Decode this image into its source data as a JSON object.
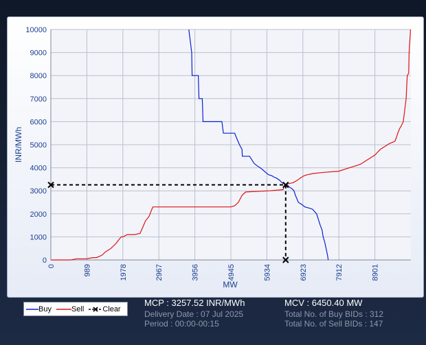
{
  "chart_data": {
    "type": "line",
    "ylabel": "INR/MWh",
    "xlabel": "MW",
    "xlim": [
      0,
      9890
    ],
    "ylim": [
      0,
      10000
    ],
    "x_ticks": [
      0,
      989,
      1978,
      2967,
      3956,
      4945,
      5934,
      6923,
      7912,
      8901
    ],
    "y_ticks": [
      0,
      1000,
      2000,
      3000,
      4000,
      5000,
      6000,
      7000,
      8000,
      9000,
      10000
    ],
    "grid": true,
    "legend_position": "bottom-left",
    "series": [
      {
        "name": "Buy",
        "color": "#0b1fd1",
        "x": [
          3790,
          3870,
          3880,
          4050,
          4070,
          4160,
          4180,
          4700,
          4740,
          5050,
          5100,
          5180,
          5250,
          5260,
          5460,
          5500,
          5580,
          5650,
          5750,
          5830,
          5900,
          5980,
          6080,
          6120,
          6200,
          6290,
          6350,
          6420,
          6500,
          6560,
          6620,
          6680,
          6720,
          6800,
          6900,
          6980,
          7100,
          7190,
          7300,
          7400,
          7450,
          7480,
          7520,
          7560,
          7600,
          7620
        ],
        "y": [
          10000,
          9000,
          8000,
          8000,
          7000,
          7000,
          6000,
          6000,
          5500,
          5500,
          5300,
          5000,
          4800,
          4500,
          4500,
          4400,
          4200,
          4100,
          4000,
          3900,
          3800,
          3700,
          3650,
          3600,
          3550,
          3450,
          3350,
          3300,
          3250,
          3150,
          3100,
          3000,
          2800,
          2500,
          2400,
          2300,
          2250,
          2200,
          2000,
          1500,
          1300,
          1000,
          800,
          500,
          200,
          0
        ]
      },
      {
        "name": "Sell",
        "color": "#e01010",
        "x": [
          0,
          550,
          700,
          980,
          1150,
          1250,
          1400,
          1500,
          1650,
          1780,
          1930,
          1978,
          2100,
          2300,
          2450,
          2520,
          2600,
          2700,
          2750,
          2800,
          3956,
          4945,
          5050,
          5150,
          5250,
          5350,
          6000,
          6380,
          6420,
          6500,
          6650,
          6760,
          6850,
          6950,
          7050,
          7200,
          7500,
          7912,
          8100,
          8300,
          8500,
          8650,
          8800,
          8901,
          9050,
          9150,
          9250,
          9300,
          9380,
          9450,
          9490,
          9530,
          9580,
          9620,
          9680,
          9720,
          9760,
          9790,
          9830,
          9840,
          9880
        ],
        "y": [
          0,
          0,
          50,
          50,
          100,
          100,
          200,
          350,
          500,
          700,
          1000,
          1000,
          1100,
          1100,
          1150,
          1400,
          1700,
          1900,
          2100,
          2300,
          2300,
          2300,
          2350,
          2500,
          2800,
          2950,
          3000,
          3050,
          3257.52,
          3300,
          3350,
          3450,
          3550,
          3650,
          3700,
          3750,
          3800,
          3850,
          3950,
          4050,
          4150,
          4300,
          4450,
          4550,
          4800,
          4900,
          5000,
          5050,
          5100,
          5150,
          5300,
          5500,
          5700,
          5800,
          6000,
          6500,
          7000,
          8000,
          8100,
          9000,
          10000
        ]
      },
      {
        "name": "Clear",
        "color": "#000000",
        "x": [
          0,
          6450.4,
          6450.4
        ],
        "y": [
          3257.52,
          3257.52,
          0
        ]
      }
    ]
  },
  "info": {
    "mcp": "MCP : 3257.52 INR/MWh",
    "delivery_date": "Delivery Date : 07 Jul 2025",
    "period": "Period :  00:00-00:15",
    "mcv": "MCV : 6450.40 MW",
    "total_buy_bids": "Total No. of Buy BIDs : 312",
    "total_sell_bids": "Total No. of Sell BIDs : 147"
  }
}
